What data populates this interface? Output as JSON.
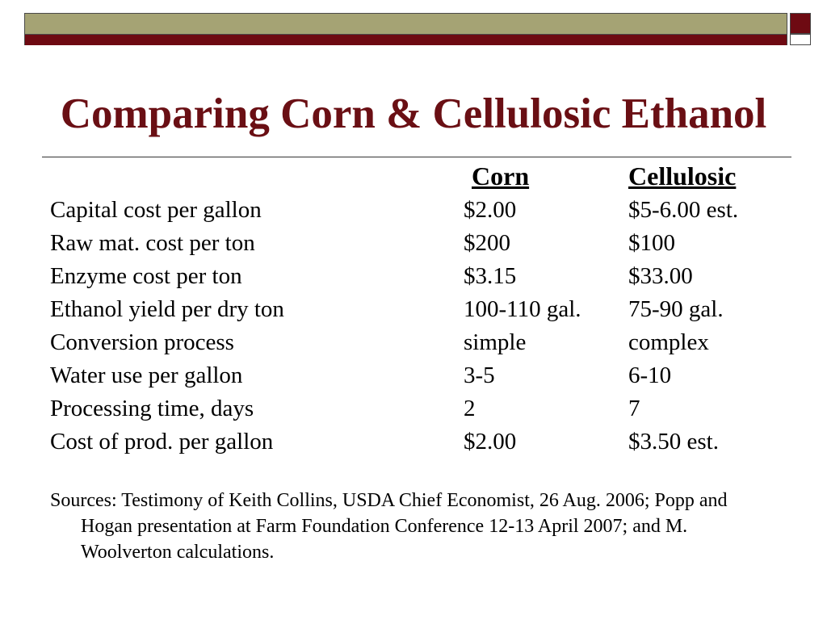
{
  "slide": {
    "title": "Comparing Corn & Cellulosic Ethanol",
    "colors": {
      "title": "#6a0f14",
      "band_olive": "#a5a374",
      "band_maroon": "#6e0a12"
    },
    "table": {
      "headers": {
        "corn": "Corn",
        "cellulosic": "Cellulosic"
      },
      "rows": [
        {
          "label": "Capital cost per gallon",
          "corn": "$2.00",
          "cellulosic": "$5-6.00 est."
        },
        {
          "label": "Raw mat. cost per ton",
          "corn": "$200",
          "cellulosic": "$100"
        },
        {
          "label": "Enzyme cost per ton",
          "corn": "$3.15",
          "cellulosic": "$33.00"
        },
        {
          "label": "Ethanol yield per dry ton",
          "corn": "100-110 gal.",
          "cellulosic": "75-90 gal."
        },
        {
          "label": "Conversion process",
          "corn": "simple",
          "cellulosic": "complex"
        },
        {
          "label": "Water use per gallon",
          "corn": "3-5",
          "cellulosic": "6-10"
        },
        {
          "label": "Processing time, days",
          "corn": "2",
          "cellulosic": "7"
        },
        {
          "label": "Cost of prod. per gallon",
          "corn": "$2.00",
          "cellulosic": "$3.50 est."
        }
      ]
    },
    "sources": "Sources: Testimony of Keith Collins, USDA Chief Economist, 26 Aug. 2006; Popp and Hogan presentation at Farm Foundation Conference 12-13 April 2007; and M. Woolverton calculations."
  }
}
